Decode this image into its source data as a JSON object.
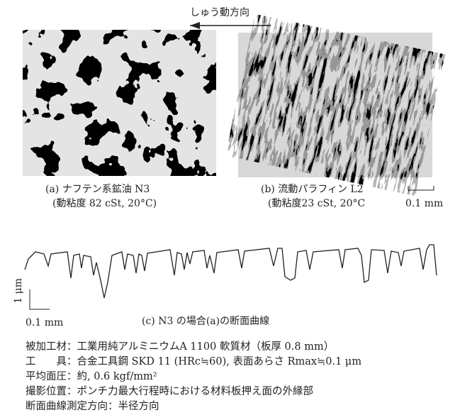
{
  "direction_label": "しゅう動方向",
  "panels": [
    {
      "caption": "(a) ナフテン系鉱油 N3",
      "condition": "(動粘度 82 cSt, 20°C)"
    },
    {
      "caption": "(b) 流動パラフィン L2",
      "condition": "(動粘度23 cSt, 20°C",
      "scale": "0.1 mm"
    }
  ],
  "profile": {
    "vertical_scale": "1 μm",
    "horizontal_scale": "0.1 mm",
    "caption": "(c) N3 の場合(a)の断面曲線"
  },
  "notes": [
    "被加工材：工業用純アルミニウムA 1100 軟質材（板厚 0.8 mm）",
    "工　　具：合金工具鋼 SKD 11 (HRc≒60), 表面あらさ Rmax≒0.1 μm",
    "平均面圧：約, 0.6 kgf/mm²",
    "撮影位置：ポンチ力最大行程時における材料板押え面の外縁部",
    "断面曲線測定方向：半径方向"
  ]
}
